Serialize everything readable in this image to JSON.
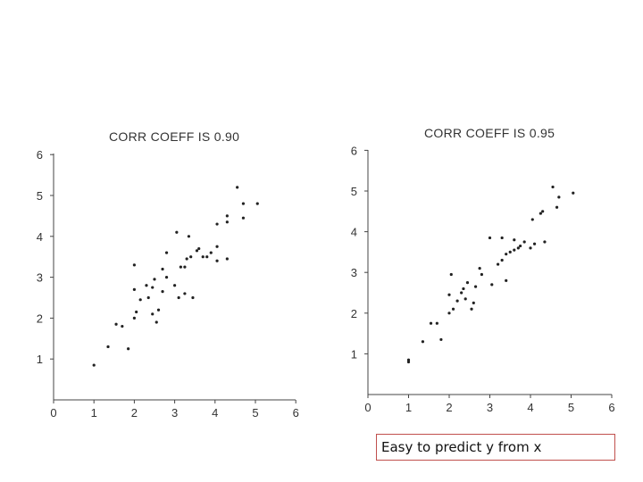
{
  "caption": "Easy to predict y from x",
  "chart_data": [
    {
      "type": "scatter",
      "title": "CORR COEFF IS 0.90",
      "xlim": [
        0,
        6
      ],
      "ylim": [
        0,
        6
      ],
      "xticks": [
        0,
        1,
        2,
        3,
        4,
        5,
        6
      ],
      "yticks": [
        1,
        2,
        3,
        4,
        5,
        6
      ],
      "grid": false,
      "points": [
        [
          1.0,
          0.85
        ],
        [
          1.35,
          1.3
        ],
        [
          1.55,
          1.85
        ],
        [
          1.7,
          1.8
        ],
        [
          1.85,
          1.25
        ],
        [
          2.0,
          2.0
        ],
        [
          2.0,
          2.7
        ],
        [
          2.0,
          3.3
        ],
        [
          2.05,
          2.15
        ],
        [
          2.15,
          2.45
        ],
        [
          2.3,
          2.8
        ],
        [
          2.35,
          2.5
        ],
        [
          2.45,
          2.1
        ],
        [
          2.45,
          2.75
        ],
        [
          2.5,
          2.95
        ],
        [
          2.55,
          1.9
        ],
        [
          2.6,
          2.2
        ],
        [
          2.7,
          2.65
        ],
        [
          2.7,
          3.2
        ],
        [
          2.8,
          3.0
        ],
        [
          2.8,
          3.6
        ],
        [
          3.0,
          2.8
        ],
        [
          3.05,
          4.1
        ],
        [
          3.1,
          2.5
        ],
        [
          3.15,
          3.25
        ],
        [
          3.25,
          2.6
        ],
        [
          3.25,
          3.25
        ],
        [
          3.3,
          3.45
        ],
        [
          3.35,
          4.0
        ],
        [
          3.4,
          3.5
        ],
        [
          3.45,
          2.5
        ],
        [
          3.55,
          3.65
        ],
        [
          3.6,
          3.7
        ],
        [
          3.7,
          3.5
        ],
        [
          3.8,
          3.5
        ],
        [
          3.9,
          3.6
        ],
        [
          4.05,
          3.75
        ],
        [
          4.05,
          4.3
        ],
        [
          4.05,
          3.4
        ],
        [
          4.3,
          4.35
        ],
        [
          4.3,
          4.5
        ],
        [
          4.3,
          3.45
        ],
        [
          4.55,
          5.2
        ],
        [
          4.7,
          4.8
        ],
        [
          4.7,
          4.45
        ],
        [
          5.05,
          4.8
        ]
      ]
    },
    {
      "type": "scatter",
      "title": "CORR COEFF IS 0.95",
      "xlim": [
        0,
        6
      ],
      "ylim": [
        0,
        6
      ],
      "xticks": [
        0,
        1,
        2,
        3,
        4,
        5,
        6
      ],
      "yticks": [
        1,
        2,
        3,
        4,
        5,
        6
      ],
      "grid": false,
      "points": [
        [
          1.0,
          0.85
        ],
        [
          1.0,
          0.8
        ],
        [
          1.35,
          1.3
        ],
        [
          1.55,
          1.75
        ],
        [
          1.7,
          1.75
        ],
        [
          1.8,
          1.35
        ],
        [
          2.0,
          2.0
        ],
        [
          2.0,
          2.45
        ],
        [
          2.05,
          2.95
        ],
        [
          2.1,
          2.1
        ],
        [
          2.2,
          2.3
        ],
        [
          2.3,
          2.5
        ],
        [
          2.35,
          2.6
        ],
        [
          2.4,
          2.35
        ],
        [
          2.45,
          2.75
        ],
        [
          2.55,
          2.1
        ],
        [
          2.6,
          2.25
        ],
        [
          2.65,
          2.65
        ],
        [
          2.75,
          3.1
        ],
        [
          2.8,
          2.95
        ],
        [
          3.0,
          3.85
        ],
        [
          3.05,
          2.7
        ],
        [
          3.2,
          3.2
        ],
        [
          3.3,
          3.3
        ],
        [
          3.3,
          3.85
        ],
        [
          3.4,
          2.8
        ],
        [
          3.4,
          3.45
        ],
        [
          3.5,
          3.5
        ],
        [
          3.6,
          3.55
        ],
        [
          3.6,
          3.8
        ],
        [
          3.7,
          3.6
        ],
        [
          3.75,
          3.65
        ],
        [
          3.85,
          3.75
        ],
        [
          4.0,
          3.6
        ],
        [
          4.05,
          4.3
        ],
        [
          4.1,
          3.7
        ],
        [
          4.25,
          4.45
        ],
        [
          4.3,
          4.5
        ],
        [
          4.35,
          3.75
        ],
        [
          4.55,
          5.1
        ],
        [
          4.65,
          4.6
        ],
        [
          4.7,
          4.85
        ],
        [
          5.05,
          4.95
        ]
      ]
    }
  ]
}
